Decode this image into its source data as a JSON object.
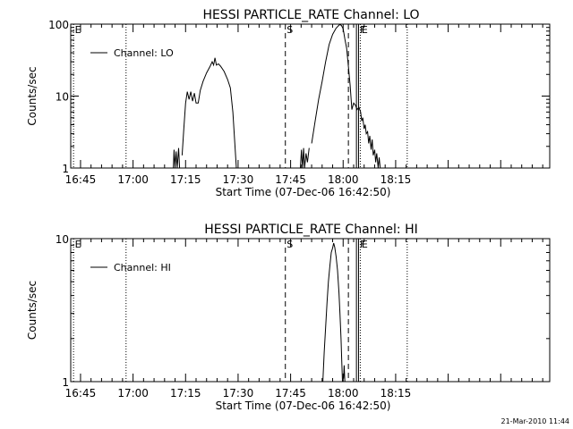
{
  "timestamp": "21-Mar-2010 11:44",
  "chart_data": [
    {
      "type": "line",
      "title": "HESSI PARTICLE_RATE Channel: LO",
      "xlabel": "Start Time (07-Dec-06 16:42:50)",
      "ylabel": "Counts/sec",
      "yscale": "log",
      "ylim": [
        1,
        100
      ],
      "ytick_labels": [
        "1",
        "10",
        "100"
      ],
      "ytick_values": [
        1,
        10,
        100
      ],
      "xlim_min": [
        -2.8,
        134
      ],
      "xtick_labels": [
        "16:45",
        "17:00",
        "17:15",
        "17:30",
        "17:45",
        "18:00",
        "18:15"
      ],
      "xtick_values_min": [
        0,
        15,
        30,
        45,
        60,
        75,
        90
      ],
      "legend": {
        "label": "Channel: LO",
        "position": "top-left"
      },
      "markers": [
        {
          "x_min": -2.0,
          "style": "dotted",
          "label": "E"
        },
        {
          "x_min": 13.0,
          "style": "dotted",
          "label": ""
        },
        {
          "x_min": 58.5,
          "style": "dashed",
          "label": "S"
        },
        {
          "x_min": 76.5,
          "style": "dashed",
          "label": ""
        },
        {
          "x_min": 78.8,
          "style": "solid",
          "label": ""
        },
        {
          "x_min": 79.4,
          "style": "solid",
          "label": "F"
        },
        {
          "x_min": 79.9,
          "style": "dotted",
          "label": "E"
        },
        {
          "x_min": 93.3,
          "style": "dotted",
          "label": ""
        }
      ],
      "series": [
        {
          "name": "Channel: LO",
          "segments": [
            [
              [
                26.5,
                1
              ],
              [
                26.7,
                1.8
              ],
              [
                27.0,
                1.0
              ],
              [
                27.3,
                1.7
              ],
              [
                27.6,
                1.0
              ],
              [
                28.0,
                1.9
              ],
              [
                28.3,
                1.0
              ]
            ],
            [
              [
                29.0,
                1.5
              ],
              [
                29.5,
                3.5
              ],
              [
                30.0,
                8.0
              ],
              [
                30.5,
                11.5
              ],
              [
                31.0,
                9.0
              ],
              [
                31.5,
                11.5
              ],
              [
                32.0,
                8.5
              ],
              [
                32.5,
                11.0
              ],
              [
                33.0,
                8.0
              ],
              [
                33.6,
                8.0
              ],
              [
                34.2,
                12.0
              ],
              [
                35.0,
                16.0
              ],
              [
                36.0,
                21.0
              ],
              [
                37.0,
                26.0
              ],
              [
                37.6,
                30.0
              ],
              [
                38.0,
                27.0
              ],
              [
                38.4,
                34.0
              ],
              [
                38.8,
                27.0
              ],
              [
                39.4,
                28.0
              ],
              [
                40.0,
                26.0
              ],
              [
                41.0,
                22.0
              ],
              [
                42.0,
                17.0
              ],
              [
                42.8,
                13.0
              ],
              [
                43.5,
                6.0
              ],
              [
                44.0,
                2.5
              ],
              [
                44.5,
                1.0
              ]
            ],
            [
              [
                62.8,
                1.0
              ],
              [
                63.1,
                1.8
              ],
              [
                63.4,
                1.0
              ],
              [
                63.7,
                1.9
              ],
              [
                64.0,
                1.0
              ],
              [
                64.4,
                1.6
              ],
              [
                64.8,
                1.2
              ],
              [
                65.3,
                1.9
              ]
            ],
            [
              [
                66.0,
                2.2
              ],
              [
                67.0,
                4.5
              ],
              [
                68.0,
                9.0
              ],
              [
                69.0,
                16.0
              ],
              [
                70.0,
                30.0
              ],
              [
                71.0,
                52.0
              ],
              [
                72.0,
                72.0
              ],
              [
                73.0,
                88.0
              ],
              [
                74.0,
                99.0
              ],
              [
                74.5,
                96.0
              ],
              [
                75.0,
                86.0
              ],
              [
                75.5,
                62.0
              ],
              [
                76.0,
                46.0
              ],
              [
                76.5,
                26.0
              ],
              [
                77.0,
                14.0
              ],
              [
                77.5,
                6.5
              ],
              [
                78.0,
                8.0
              ],
              [
                78.5,
                7.5
              ],
              [
                79.0,
                6.5
              ],
              [
                79.5,
                7.0
              ],
              [
                80.0,
                6.0
              ],
              [
                80.3,
                4.5
              ],
              [
                80.6,
                5.0
              ],
              [
                81.0,
                3.5
              ],
              [
                81.3,
                4.0
              ],
              [
                81.6,
                3.0
              ],
              [
                82.0,
                3.2
              ],
              [
                82.3,
                2.2
              ],
              [
                82.6,
                2.8
              ],
              [
                83.0,
                1.8
              ],
              [
                83.3,
                2.5
              ],
              [
                83.6,
                1.5
              ],
              [
                84.0,
                1.8
              ],
              [
                84.3,
                1.2
              ],
              [
                84.6,
                1.6
              ],
              [
                85.0,
                1.0
              ],
              [
                85.3,
                1.4
              ],
              [
                85.6,
                1.0
              ]
            ]
          ]
        }
      ]
    },
    {
      "type": "line",
      "title": "HESSI PARTICLE_RATE Channel: HI",
      "xlabel": "Start Time (07-Dec-06 16:42:50)",
      "ylabel": "Counts/sec",
      "yscale": "log",
      "ylim": [
        1,
        10
      ],
      "ytick_labels": [
        "1",
        "10"
      ],
      "ytick_values": [
        1,
        10
      ],
      "xlim_min": [
        -2.8,
        134
      ],
      "xtick_labels": [
        "16:45",
        "17:00",
        "17:15",
        "17:30",
        "17:45",
        "18:00",
        "18:15"
      ],
      "xtick_values_min": [
        0,
        15,
        30,
        45,
        60,
        75,
        90
      ],
      "legend": {
        "label": "Channel: HI",
        "position": "top-left"
      },
      "markers": [
        {
          "x_min": -2.0,
          "style": "dotted",
          "label": "E"
        },
        {
          "x_min": 13.0,
          "style": "dotted",
          "label": ""
        },
        {
          "x_min": 58.5,
          "style": "dashed",
          "label": "S"
        },
        {
          "x_min": 76.5,
          "style": "dashed",
          "label": ""
        },
        {
          "x_min": 78.8,
          "style": "solid",
          "label": ""
        },
        {
          "x_min": 79.4,
          "style": "solid",
          "label": "F"
        },
        {
          "x_min": 79.9,
          "style": "dotted",
          "label": "E"
        },
        {
          "x_min": 93.3,
          "style": "dotted",
          "label": ""
        }
      ],
      "series": [
        {
          "name": "Channel: HI",
          "segments": [
            [
              [
                69.2,
                1.0
              ],
              [
                69.6,
                1.6
              ],
              [
                70.0,
                2.4
              ],
              [
                70.4,
                3.6
              ],
              [
                70.8,
                5.0
              ],
              [
                71.2,
                6.4
              ],
              [
                71.6,
                8.0
              ],
              [
                72.0,
                8.6
              ],
              [
                72.3,
                9.3
              ],
              [
                72.6,
                8.7
              ],
              [
                73.0,
                7.5
              ],
              [
                73.4,
                6.0
              ],
              [
                73.8,
                4.2
              ],
              [
                74.1,
                3.0
              ],
              [
                74.4,
                2.0
              ],
              [
                74.6,
                1.4
              ],
              [
                74.8,
                1.0
              ]
            ],
            [
              [
                75.1,
                1.05
              ],
              [
                75.3,
                1.3
              ],
              [
                75.5,
                1.0
              ]
            ]
          ]
        }
      ]
    }
  ]
}
